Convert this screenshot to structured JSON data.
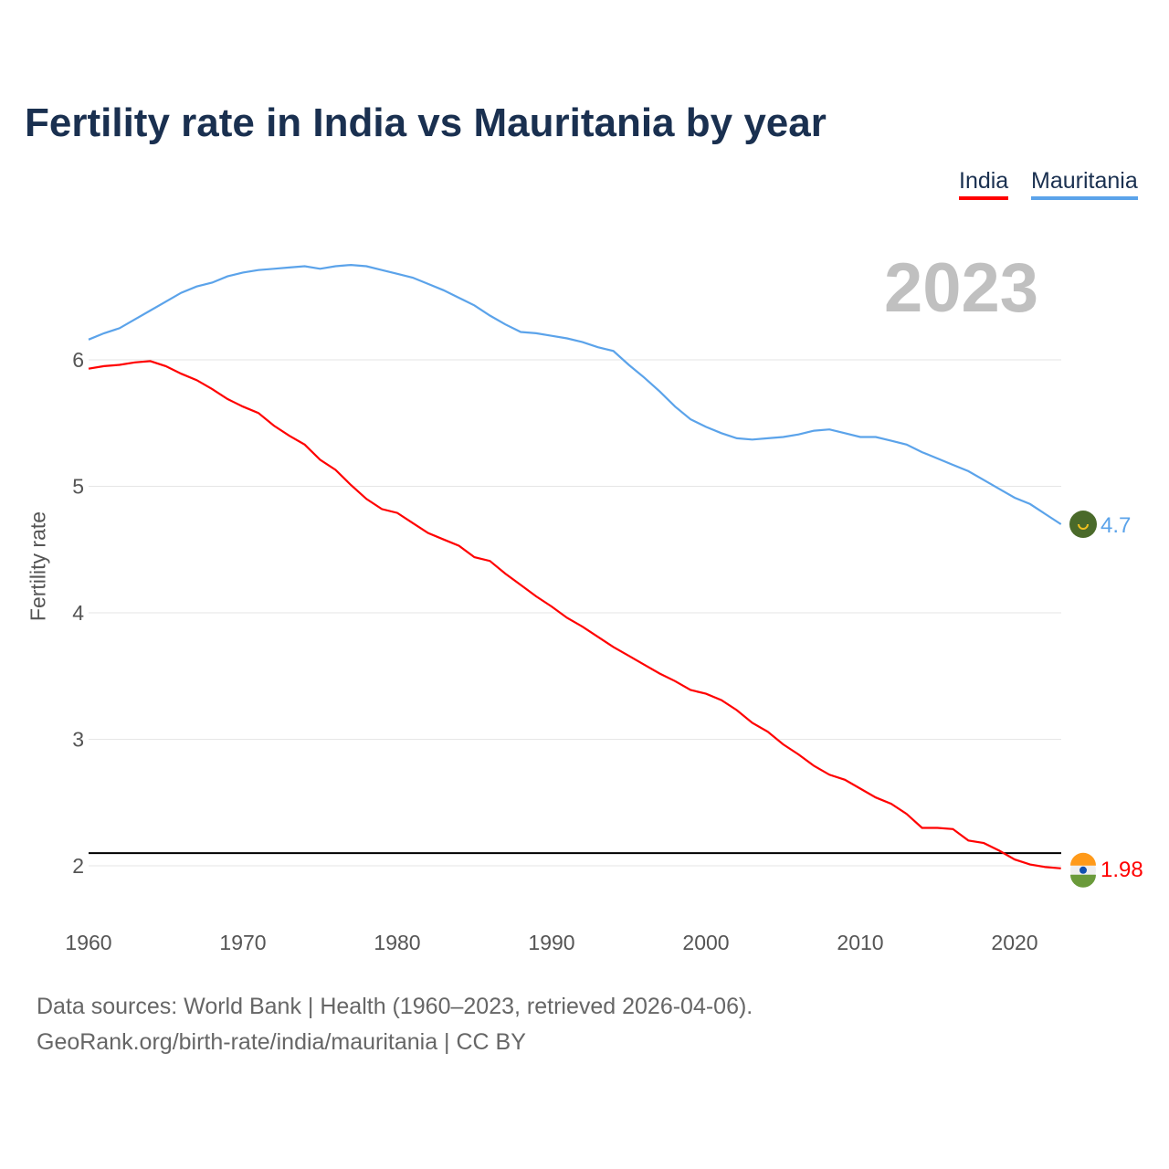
{
  "title": "Fertility rate in India vs Mauritania by year",
  "legend": {
    "india": "India",
    "mauritania": "Mauritania"
  },
  "year_label": "2023",
  "footer": {
    "line1": "Data sources: World Bank | Health (1960–2023, retrieved 2026-04-06).",
    "line2": "GeoRank.org/birth-rate/india/mauritania | CC BY"
  },
  "colors": {
    "india": "#ff0000",
    "mauritania": "#5ba3ea",
    "reference": "#000000"
  },
  "chart_data": {
    "type": "line",
    "title": "Fertility rate in India vs Mauritania by year",
    "xlabel": "",
    "ylabel": "Fertility rate",
    "xlim": [
      1960,
      2023
    ],
    "ylim": [
      1.6,
      7.0
    ],
    "x_ticks": [
      1960,
      1970,
      1980,
      1990,
      2000,
      2010,
      2020
    ],
    "y_ticks": [
      2,
      3,
      4,
      5,
      6
    ],
    "reference_line": 2.1,
    "legend_position": "top-right",
    "x": [
      1960,
      1961,
      1962,
      1963,
      1964,
      1965,
      1966,
      1967,
      1968,
      1969,
      1970,
      1971,
      1972,
      1973,
      1974,
      1975,
      1976,
      1977,
      1978,
      1979,
      1980,
      1981,
      1982,
      1983,
      1984,
      1985,
      1986,
      1987,
      1988,
      1989,
      1990,
      1991,
      1992,
      1993,
      1994,
      1995,
      1996,
      1997,
      1998,
      1999,
      2000,
      2001,
      2002,
      2003,
      2004,
      2005,
      2006,
      2007,
      2008,
      2009,
      2010,
      2011,
      2012,
      2013,
      2014,
      2015,
      2016,
      2017,
      2018,
      2019,
      2020,
      2021,
      2022,
      2023
    ],
    "series": [
      {
        "name": "India",
        "end_label": "1.98",
        "values": [
          5.93,
          5.95,
          5.96,
          5.98,
          5.99,
          5.95,
          5.89,
          5.84,
          5.77,
          5.69,
          5.63,
          5.58,
          5.48,
          5.4,
          5.33,
          5.21,
          5.13,
          5.01,
          4.9,
          4.82,
          4.79,
          4.71,
          4.63,
          4.58,
          4.53,
          4.44,
          4.41,
          4.31,
          4.22,
          4.13,
          4.05,
          3.96,
          3.89,
          3.81,
          3.73,
          3.66,
          3.59,
          3.52,
          3.46,
          3.39,
          3.36,
          3.31,
          3.23,
          3.13,
          3.06,
          2.96,
          2.88,
          2.79,
          2.72,
          2.68,
          2.61,
          2.54,
          2.49,
          2.41,
          2.3,
          2.3,
          2.29,
          2.2,
          2.18,
          2.12,
          2.05,
          2.01,
          1.99,
          1.98
        ]
      },
      {
        "name": "Mauritania",
        "end_label": "4.7",
        "values": [
          6.16,
          6.21,
          6.25,
          6.32,
          6.39,
          6.46,
          6.53,
          6.58,
          6.61,
          6.66,
          6.69,
          6.71,
          6.72,
          6.73,
          6.74,
          6.72,
          6.74,
          6.75,
          6.74,
          6.71,
          6.68,
          6.65,
          6.6,
          6.55,
          6.49,
          6.43,
          6.35,
          6.28,
          6.22,
          6.21,
          6.19,
          6.17,
          6.14,
          6.1,
          6.07,
          5.96,
          5.86,
          5.75,
          5.63,
          5.53,
          5.47,
          5.42,
          5.38,
          5.37,
          5.38,
          5.39,
          5.41,
          5.44,
          5.45,
          5.42,
          5.39,
          5.39,
          5.36,
          5.33,
          5.27,
          5.22,
          5.17,
          5.12,
          5.05,
          4.98,
          4.91,
          4.86,
          4.78,
          4.7
        ]
      }
    ]
  }
}
